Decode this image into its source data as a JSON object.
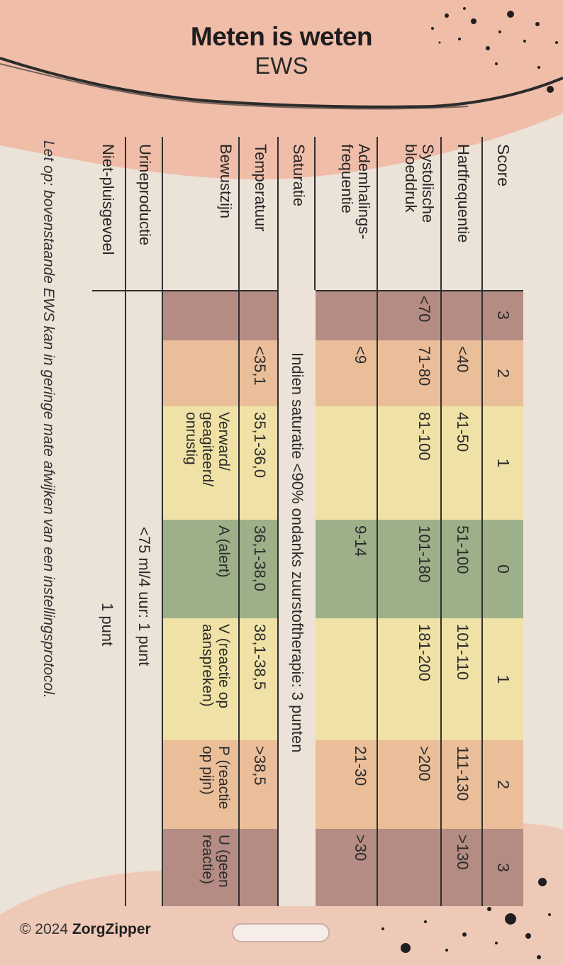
{
  "title": "Meten is weten",
  "subtitle": "EWS",
  "colors": {
    "score3": "#b48c84",
    "score2": "#ebbe9a",
    "score1": "#f0e2a6",
    "score0": "#9db08a",
    "blob": "#f1b9a3"
  },
  "table": {
    "header": {
      "label": "Score",
      "scores": [
        "3",
        "2",
        "1",
        "0",
        "1",
        "2",
        "3"
      ]
    },
    "rows": {
      "hartfrequentie": {
        "label": "Hartfrequentie",
        "values": [
          "",
          "<40",
          "41-50",
          "51-100",
          "101-110",
          "111-130",
          ">130"
        ]
      },
      "bloeddruk": {
        "label": "Systolische bloeddruk",
        "values": [
          "<70",
          "71-80",
          "81-100",
          "101-180",
          "181-200",
          ">200",
          ""
        ]
      },
      "ademhaling": {
        "label": "Ademhalings-frequentie",
        "values": [
          "",
          "<9",
          "",
          "9-14",
          "",
          "21-30",
          ">30"
        ]
      },
      "saturatie": {
        "label": "Saturatie",
        "text": "Indien saturatie <90% ondanks zuurstoftherapie: 3 punten"
      },
      "temperatuur": {
        "label": "Temperatuur",
        "values": [
          "",
          "<35,1",
          "35,1-36,0",
          "36,1-38,0",
          "38,1-38,5",
          ">38,5",
          ""
        ]
      },
      "bewustzijn": {
        "label": "Bewustzijn",
        "values": [
          "",
          "",
          "Verward/ geagiteerd/ onrustig",
          "A (alert)",
          "V (reactie op aanspreken)",
          "P (reactie op pijn)",
          "U (geen reactie)"
        ]
      },
      "urine": {
        "label": "Urineproductie",
        "text": "<75 ml/4 uur: 1 punt"
      },
      "pluis": {
        "label": "Niet-pluisgevoel",
        "text": "1 punt"
      }
    }
  },
  "note": "Let op: bovenstaande EWS kan in geringe mate afwijken van een instellingsprotocol.",
  "footer": {
    "copyright": "© 2024",
    "brand": "ZorgZipper"
  }
}
